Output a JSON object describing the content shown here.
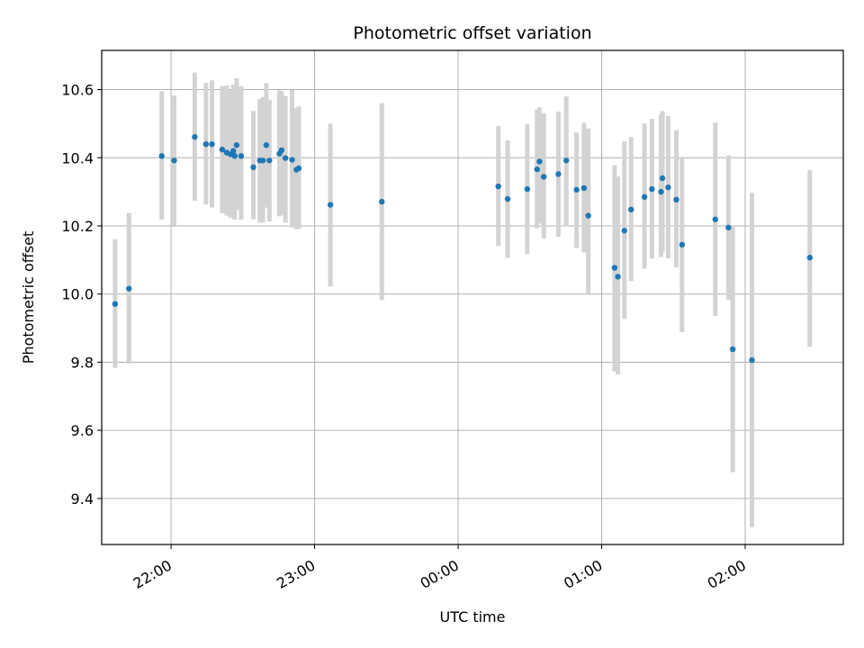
{
  "chart_data": {
    "type": "scatter",
    "title": "Photometric offset variation",
    "xlabel": "UTC time",
    "ylabel": "Photometric offset",
    "x_unit": "minutes",
    "xlim": [
      -149,
      161
    ],
    "ylim": [
      9.265,
      10.715
    ],
    "x_ticks": [
      {
        "value": -120,
        "label": "22:00"
      },
      {
        "value": -60,
        "label": "23:00"
      },
      {
        "value": 0,
        "label": "00:00"
      },
      {
        "value": 60,
        "label": "01:00"
      },
      {
        "value": 120,
        "label": "02:00"
      }
    ],
    "y_ticks": [
      9.4,
      9.6,
      9.8,
      10.0,
      10.2,
      10.4,
      10.6
    ],
    "grid": true,
    "colors": {
      "point": "#1f77b4",
      "errorbar": "#d3d3d3",
      "grid": "#b0b0b0",
      "axis": "#000000"
    },
    "series": [
      {
        "points": [
          {
            "x": -143.4,
            "y": 9.971,
            "lo": 9.783,
            "hi": 10.161
          },
          {
            "x": -137.6,
            "y": 10.016,
            "lo": 9.796,
            "hi": 10.238
          },
          {
            "x": -123.9,
            "y": 10.405,
            "lo": 10.218,
            "hi": 10.595
          },
          {
            "x": -118.7,
            "y": 10.392,
            "lo": 10.201,
            "hi": 10.583
          },
          {
            "x": -110.1,
            "y": 10.461,
            "lo": 10.274,
            "hi": 10.65
          },
          {
            "x": -105.4,
            "y": 10.44,
            "lo": 10.263,
            "hi": 10.62
          },
          {
            "x": -102.9,
            "y": 10.44,
            "lo": 10.254,
            "hi": 10.627
          },
          {
            "x": -98.6,
            "y": 10.424,
            "lo": 10.237,
            "hi": 10.61
          },
          {
            "x": -96.7,
            "y": 10.415,
            "lo": 10.23,
            "hi": 10.612
          },
          {
            "x": -95.1,
            "y": 10.41,
            "lo": 10.224,
            "hi": 10.598
          },
          {
            "x": -94.0,
            "y": 10.42,
            "lo": 10.232,
            "hi": 10.615
          },
          {
            "x": -93.4,
            "y": 10.405,
            "lo": 10.218,
            "hi": 10.59
          },
          {
            "x": -92.6,
            "y": 10.437,
            "lo": 10.247,
            "hi": 10.633
          },
          {
            "x": -90.7,
            "y": 10.405,
            "lo": 10.218,
            "hi": 10.61
          },
          {
            "x": -85.6,
            "y": 10.372,
            "lo": 10.219,
            "hi": 10.537
          },
          {
            "x": -82.9,
            "y": 10.392,
            "lo": 10.209,
            "hi": 10.572
          },
          {
            "x": -81.6,
            "y": 10.392,
            "lo": 10.21,
            "hi": 10.578
          },
          {
            "x": -80.2,
            "y": 10.437,
            "lo": 10.254,
            "hi": 10.619
          },
          {
            "x": -78.9,
            "y": 10.392,
            "lo": 10.213,
            "hi": 10.57
          },
          {
            "x": -74.7,
            "y": 10.412,
            "lo": 10.228,
            "hi": 10.598
          },
          {
            "x": -73.8,
            "y": 10.422,
            "lo": 10.232,
            "hi": 10.595
          },
          {
            "x": -72.2,
            "y": 10.399,
            "lo": 10.209,
            "hi": 10.581
          },
          {
            "x": -69.4,
            "y": 10.394,
            "lo": 10.195,
            "hi": 10.599
          },
          {
            "x": -67.6,
            "y": 10.365,
            "lo": 10.19,
            "hi": 10.545
          },
          {
            "x": -66.6,
            "y": 10.369,
            "lo": 10.191,
            "hi": 10.551
          },
          {
            "x": -53.4,
            "y": 10.262,
            "lo": 10.022,
            "hi": 10.5
          },
          {
            "x": -31.9,
            "y": 10.271,
            "lo": 9.982,
            "hi": 10.56
          },
          {
            "x": 16.8,
            "y": 10.316,
            "lo": 10.141,
            "hi": 10.493
          },
          {
            "x": 20.7,
            "y": 10.279,
            "lo": 10.106,
            "hi": 10.451
          },
          {
            "x": 28.9,
            "y": 10.308,
            "lo": 10.117,
            "hi": 10.498
          },
          {
            "x": 33.0,
            "y": 10.366,
            "lo": 10.193,
            "hi": 10.542
          },
          {
            "x": 34.0,
            "y": 10.389,
            "lo": 10.207,
            "hi": 10.548
          },
          {
            "x": 35.8,
            "y": 10.344,
            "lo": 10.163,
            "hi": 10.53
          },
          {
            "x": 41.9,
            "y": 10.352,
            "lo": 10.168,
            "hi": 10.535
          },
          {
            "x": 45.2,
            "y": 10.392,
            "lo": 10.199,
            "hi": 10.58
          },
          {
            "x": 49.5,
            "y": 10.306,
            "lo": 10.135,
            "hi": 10.474
          },
          {
            "x": 52.6,
            "y": 10.311,
            "lo": 10.122,
            "hi": 10.502
          },
          {
            "x": 54.4,
            "y": 10.23,
            "lo": 10.001,
            "hi": 10.486
          },
          {
            "x": 65.4,
            "y": 10.077,
            "lo": 9.773,
            "hi": 10.378
          },
          {
            "x": 66.8,
            "y": 10.051,
            "lo": 9.764,
            "hi": 10.345
          },
          {
            "x": 69.5,
            "y": 10.186,
            "lo": 9.927,
            "hi": 10.448
          },
          {
            "x": 72.3,
            "y": 10.248,
            "lo": 10.038,
            "hi": 10.461
          },
          {
            "x": 77.9,
            "y": 10.285,
            "lo": 10.075,
            "hi": 10.5
          },
          {
            "x": 81.0,
            "y": 10.308,
            "lo": 10.104,
            "hi": 10.514
          },
          {
            "x": 84.8,
            "y": 10.3,
            "lo": 10.109,
            "hi": 10.527
          },
          {
            "x": 85.4,
            "y": 10.34,
            "lo": 10.123,
            "hi": 10.537
          },
          {
            "x": 87.8,
            "y": 10.313,
            "lo": 10.105,
            "hi": 10.523
          },
          {
            "x": 91.2,
            "y": 10.277,
            "lo": 10.078,
            "hi": 10.481
          },
          {
            "x": 93.6,
            "y": 10.145,
            "lo": 9.888,
            "hi": 10.4
          },
          {
            "x": 107.5,
            "y": 10.219,
            "lo": 9.936,
            "hi": 10.503
          },
          {
            "x": 113.0,
            "y": 10.195,
            "lo": 9.983,
            "hi": 10.407
          },
          {
            "x": 114.8,
            "y": 9.838,
            "lo": 9.477,
            "hi": 10.198
          },
          {
            "x": 122.8,
            "y": 9.806,
            "lo": 9.316,
            "hi": 10.297
          },
          {
            "x": 147.0,
            "y": 10.107,
            "lo": 9.845,
            "hi": 10.364
          }
        ]
      }
    ]
  }
}
